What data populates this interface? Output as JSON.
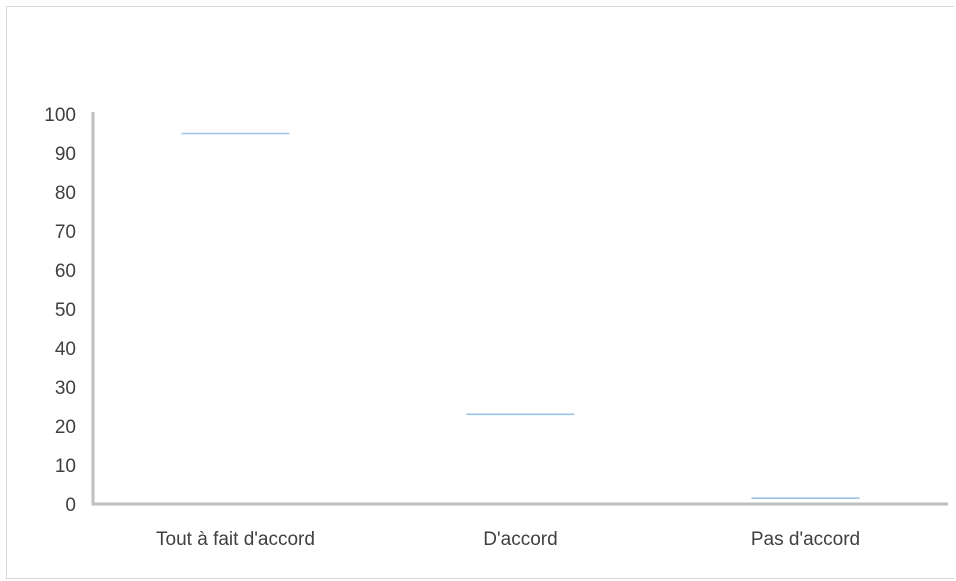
{
  "chart_data": {
    "type": "bar",
    "title": "",
    "xlabel": "",
    "ylabel": "",
    "categories": [
      "Tout à fait d'accord",
      "D'accord",
      "Pas d'accord"
    ],
    "values": [
      95,
      23,
      1.5
    ],
    "ylim": [
      0,
      100
    ],
    "yticks": [
      0,
      10,
      20,
      30,
      40,
      50,
      60,
      70,
      80,
      90,
      100
    ],
    "grid": false,
    "legend": "none",
    "colors": {
      "value_marker": "#9dc3e6",
      "axis": "#bfbfbf",
      "text": "#404040"
    }
  }
}
